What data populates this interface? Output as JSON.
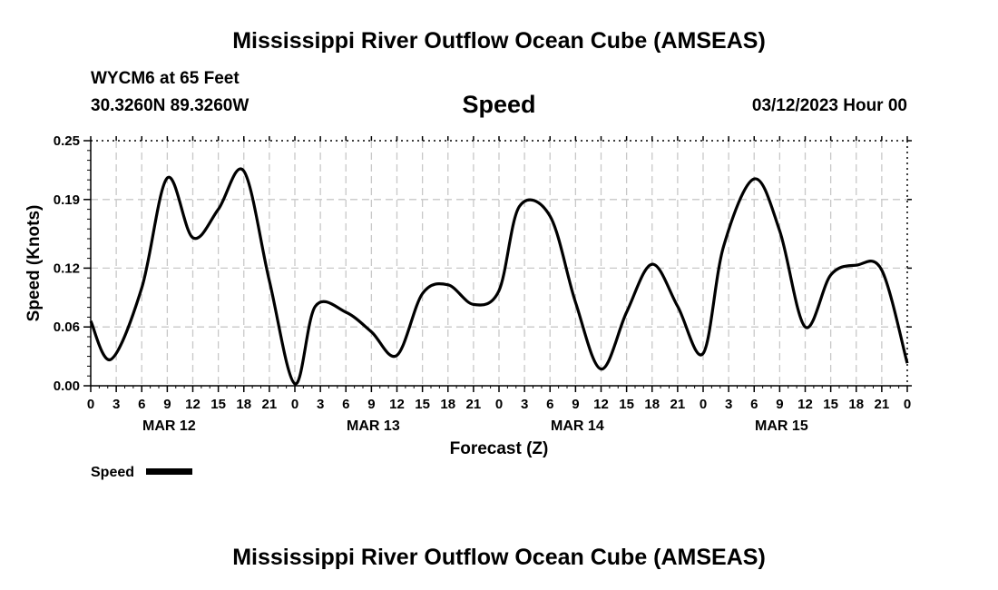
{
  "header": {
    "title": "Mississippi River Outflow Ocean Cube (AMSEAS)",
    "station": "WYCM6 at 65 Feet",
    "coords": "30.3260N  89.3260W",
    "variable": "Speed",
    "date": "03/12/2023 Hour 00"
  },
  "footer": {
    "title": "Mississippi River Outflow Ocean Cube (AMSEAS)"
  },
  "chart_data": {
    "type": "line",
    "title": "Speed",
    "xlabel": "Forecast (Z)",
    "ylabel": "Speed (Knots)",
    "x_unit": "hours",
    "xlim": [
      0,
      96
    ],
    "ylim": [
      0,
      0.25
    ],
    "yticks": [
      0.0,
      0.06,
      0.12,
      0.19,
      0.25
    ],
    "ytick_labels": [
      "0.00",
      "0.06",
      "0.12",
      "0.19",
      "0.25"
    ],
    "xtick_labels": [
      "0",
      "3",
      "6",
      "9",
      "12",
      "15",
      "18",
      "21",
      "0",
      "3",
      "6",
      "9",
      "12",
      "15",
      "18",
      "21",
      "0",
      "3",
      "6",
      "9",
      "12",
      "15",
      "18",
      "21",
      "0",
      "3",
      "6",
      "9",
      "12",
      "15",
      "18",
      "21",
      "0"
    ],
    "day_labels": [
      {
        "label": "MAR 12",
        "hour": 9
      },
      {
        "label": "MAR 13",
        "hour": 33
      },
      {
        "label": "MAR 14",
        "hour": 57
      },
      {
        "label": "MAR 15",
        "hour": 81
      }
    ],
    "grid": true,
    "legend_position": "bottom-left",
    "series": [
      {
        "name": "Speed",
        "color": "#000000",
        "x": [
          0,
          2.4,
          6,
          9,
          12,
          15,
          18,
          21,
          24,
          26.4,
          30,
          33,
          36,
          39,
          42,
          45,
          48,
          50.4,
          54,
          57,
          60,
          63,
          66,
          69,
          72,
          74.4,
          78,
          81,
          84,
          87,
          90,
          93,
          96
        ],
        "values": [
          0.066,
          0.027,
          0.1,
          0.212,
          0.151,
          0.18,
          0.219,
          0.107,
          0.002,
          0.081,
          0.075,
          0.055,
          0.031,
          0.094,
          0.103,
          0.083,
          0.097,
          0.183,
          0.173,
          0.085,
          0.017,
          0.075,
          0.124,
          0.081,
          0.033,
          0.142,
          0.211,
          0.158,
          0.06,
          0.113,
          0.123,
          0.118,
          0.023
        ]
      }
    ]
  }
}
